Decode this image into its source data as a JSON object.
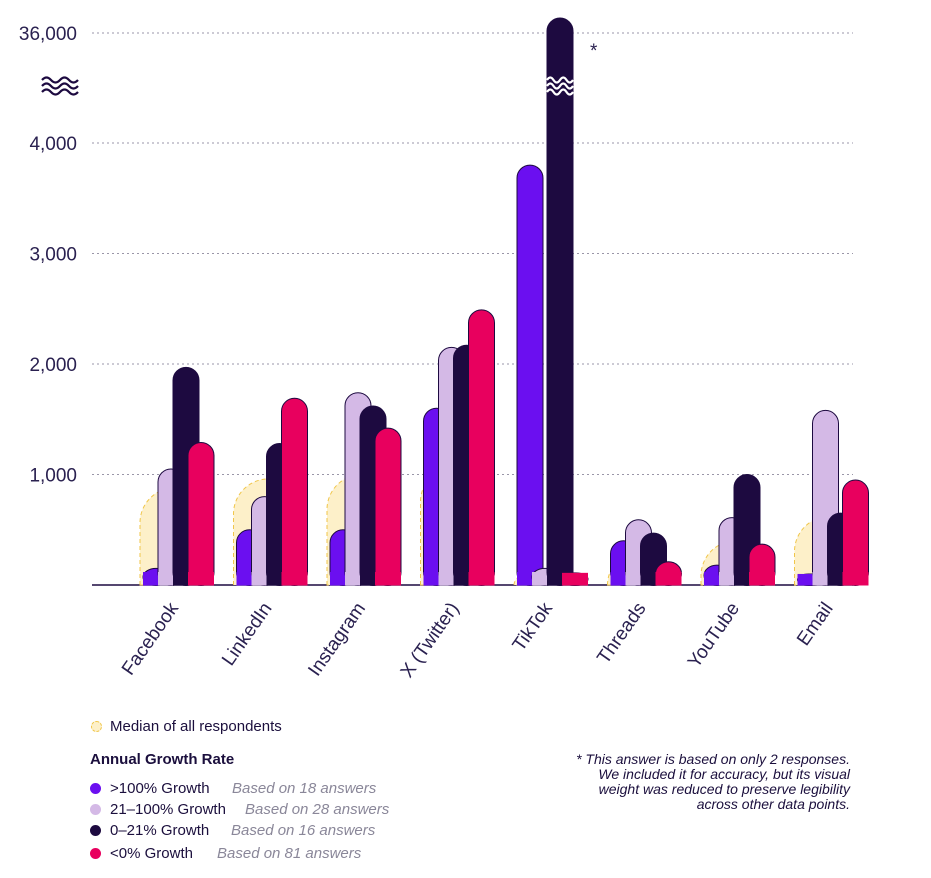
{
  "chart_data": {
    "type": "bar",
    "categories": [
      "Facebook",
      "LinkedIn",
      "Instagram",
      "X (Twitter)",
      "TikTok",
      "Threads",
      "YouTube",
      "Email"
    ],
    "series": [
      {
        "name": ">100% Growth",
        "color": "#6b0ff0",
        "values": [
          150,
          500,
          500,
          1600,
          3800,
          400,
          180,
          100
        ]
      },
      {
        "name": "21–100% Growth",
        "color": "#d4b9e6",
        "values": [
          1050,
          800,
          1740,
          2150,
          150,
          590,
          610,
          1580
        ]
      },
      {
        "name": "0–21% Growth",
        "color": "#1d0a40",
        "values": [
          1970,
          1280,
          1620,
          2170,
          36000,
          470,
          1000,
          650
        ]
      },
      {
        "name": "<0% Growth",
        "color": "#e8005e",
        "values": [
          1290,
          1690,
          1420,
          2490,
          110,
          210,
          370,
          950
        ]
      }
    ],
    "median": [
      880,
      960,
      1000,
      1070,
      150,
      310,
      400,
      620
    ],
    "y_ticks": [
      "1,000",
      "2,000",
      "3,000",
      "4,000",
      "36,000"
    ],
    "ylim": [
      0,
      4000
    ],
    "axis_break": true,
    "grid": true,
    "asterisk": "*",
    "asterisk_category": "TikTok"
  },
  "legend": {
    "median_label": "Median of all respondents",
    "title": "Annual Growth Rate",
    "items": [
      {
        "label": ">100% Growth",
        "note": "Based on 18 answers",
        "color": "#6b0ff0"
      },
      {
        "label": "21–100% Growth",
        "note": "Based on 28 answers",
        "color": "#d4b9e6"
      },
      {
        "label": "0–21% Growth",
        "note": "Based on 16 answers",
        "color": "#1d0a40"
      },
      {
        "label": "<0% Growth",
        "note": "Based on 81 answers",
        "color": "#e8005e"
      }
    ]
  },
  "footnote": {
    "line1": "* This answer is based on only 2 responses.",
    "line2": "We included it for accuracy, but its visual",
    "line3": "weight was reduced to preserve legibility",
    "line4": "across other data points."
  }
}
